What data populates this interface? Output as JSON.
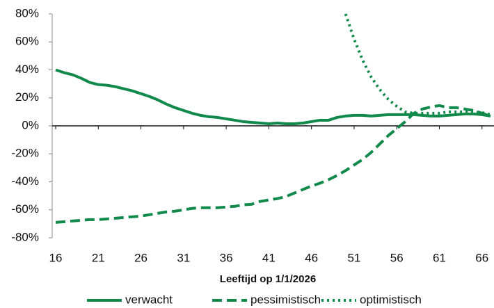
{
  "chart_data": {
    "type": "line",
    "x_label": "Leeftijd op 1/1/2026",
    "x": [
      16,
      17,
      18,
      19,
      20,
      21,
      22,
      23,
      24,
      25,
      26,
      27,
      28,
      29,
      30,
      31,
      32,
      33,
      34,
      35,
      36,
      37,
      38,
      39,
      40,
      41,
      42,
      43,
      44,
      45,
      46,
      47,
      48,
      49,
      50,
      51,
      52,
      53,
      54,
      55,
      56,
      57,
      58,
      59,
      60,
      61,
      62,
      63,
      64,
      65,
      66,
      67
    ],
    "series": [
      {
        "name": "verwacht",
        "color": "#11894a",
        "style": "solid",
        "values": [
          40,
          38,
          36.5,
          34,
          31,
          29.5,
          29,
          28,
          26.5,
          25,
          23,
          21,
          18.5,
          15.5,
          13,
          11,
          9,
          7.5,
          6.5,
          6,
          5,
          4,
          3,
          2.5,
          2,
          1.5,
          2,
          1.5,
          1.5,
          2,
          3,
          4,
          4,
          6,
          7,
          7.5,
          7.5,
          7,
          7.5,
          8,
          8,
          8,
          8,
          7.5,
          7,
          7,
          7.5,
          8,
          8.5,
          8.5,
          8,
          7
        ]
      },
      {
        "name": "pessimistisch",
        "color": "#11894a",
        "style": "dashed",
        "values": [
          -69,
          -68.5,
          -68,
          -67.5,
          -67,
          -67,
          -66.5,
          -66,
          -65.5,
          -65,
          -64.5,
          -63.5,
          -62.5,
          -61.5,
          -61,
          -60,
          -59,
          -58.5,
          -58.5,
          -58.5,
          -58,
          -57.5,
          -56.5,
          -56,
          -54,
          -53,
          -52,
          -50.5,
          -48,
          -45.5,
          -43,
          -41,
          -38.5,
          -35.5,
          -32,
          -28,
          -24,
          -19,
          -13,
          -7,
          -2,
          3,
          9,
          12,
          13.5,
          14.5,
          13,
          13,
          12,
          11,
          9,
          7
        ]
      },
      {
        "name": "optimistisch",
        "color": "#11894a",
        "style": "dotted",
        "values": [
          null,
          null,
          null,
          null,
          null,
          null,
          null,
          null,
          null,
          null,
          null,
          null,
          null,
          null,
          null,
          null,
          null,
          null,
          null,
          null,
          null,
          null,
          null,
          null,
          null,
          null,
          null,
          null,
          null,
          null,
          null,
          null,
          null,
          null,
          80,
          62,
          47,
          35,
          26,
          19,
          14,
          10,
          9,
          9,
          9,
          9,
          10,
          10,
          10,
          10,
          9.5,
          8
        ]
      }
    ],
    "xlim": [
      16,
      67
    ],
    "xticks": [
      16,
      21,
      26,
      31,
      36,
      41,
      46,
      51,
      56,
      61,
      66
    ],
    "ylim": [
      -80,
      80
    ],
    "yticks": [
      {
        "value": -80,
        "label": "-80%"
      },
      {
        "value": -60,
        "label": "-60%"
      },
      {
        "value": -40,
        "label": "-40%"
      },
      {
        "value": -20,
        "label": "-20%"
      },
      {
        "value": 0,
        "label": "0%"
      },
      {
        "value": 20,
        "label": "20%"
      },
      {
        "value": 40,
        "label": "40%"
      },
      {
        "value": 60,
        "label": "60%"
      },
      {
        "value": 80,
        "label": "80%"
      }
    ],
    "legend": "bottom"
  }
}
